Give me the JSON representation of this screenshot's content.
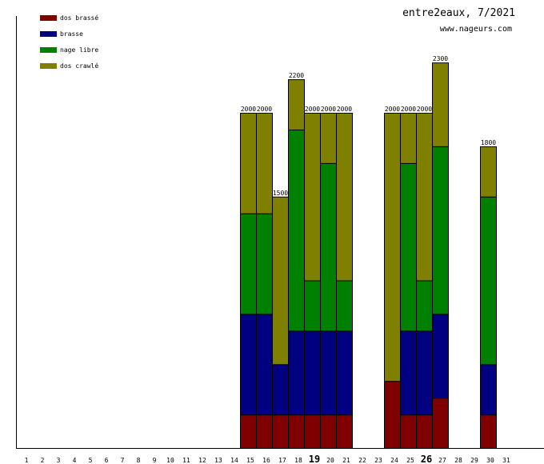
{
  "chart_data": {
    "type": "bar",
    "stacked": true,
    "title": "entre2eaux, 7/2021",
    "subtitle": "www.nageurs.com",
    "xlabel": "",
    "ylabel": "",
    "ylim": [
      0,
      2500
    ],
    "legend_position": "top-left",
    "categories": [
      "1",
      "2",
      "3",
      "4",
      "5",
      "6",
      "7",
      "8",
      "9",
      "10",
      "11",
      "12",
      "13",
      "14",
      "15",
      "16",
      "17",
      "18",
      "19",
      "20",
      "21",
      "22",
      "23",
      "24",
      "25",
      "26",
      "27",
      "28",
      "29",
      "30",
      "31"
    ],
    "bold_categories": [
      "19",
      "26"
    ],
    "series": [
      {
        "name": "dos brassé",
        "color": "#800000",
        "values": [
          0,
          0,
          0,
          0,
          0,
          0,
          0,
          0,
          0,
          0,
          0,
          0,
          0,
          0,
          200,
          200,
          200,
          200,
          200,
          200,
          200,
          0,
          0,
          400,
          200,
          200,
          300,
          0,
          0,
          200,
          0
        ]
      },
      {
        "name": "brasse",
        "color": "#000080",
        "values": [
          0,
          0,
          0,
          0,
          0,
          0,
          0,
          0,
          0,
          0,
          0,
          0,
          0,
          0,
          600,
          600,
          300,
          500,
          500,
          500,
          500,
          0,
          0,
          0,
          500,
          500,
          500,
          0,
          0,
          300,
          0
        ]
      },
      {
        "name": "nage libre",
        "color": "#008000",
        "values": [
          0,
          0,
          0,
          0,
          0,
          0,
          0,
          0,
          0,
          0,
          0,
          0,
          0,
          0,
          600,
          600,
          0,
          1200,
          300,
          1000,
          300,
          0,
          0,
          0,
          1000,
          300,
          1000,
          0,
          0,
          1000,
          0
        ]
      },
      {
        "name": "dos crawlé",
        "color": "#808000",
        "values": [
          0,
          0,
          0,
          0,
          0,
          0,
          0,
          0,
          0,
          0,
          0,
          0,
          0,
          0,
          600,
          600,
          1000,
          300,
          1000,
          300,
          1000,
          0,
          0,
          1600,
          300,
          1000,
          500,
          0,
          0,
          300,
          0
        ]
      }
    ],
    "totals": [
      "",
      "",
      "",
      "",
      "",
      "",
      "",
      "",
      "",
      "",
      "",
      "",
      "",
      "",
      "2000",
      "2000",
      "1500",
      "2200",
      "2000",
      "2000",
      "2000",
      "",
      "",
      "2000",
      "2000",
      "2000",
      "2300",
      "",
      "",
      "1800",
      ""
    ]
  }
}
